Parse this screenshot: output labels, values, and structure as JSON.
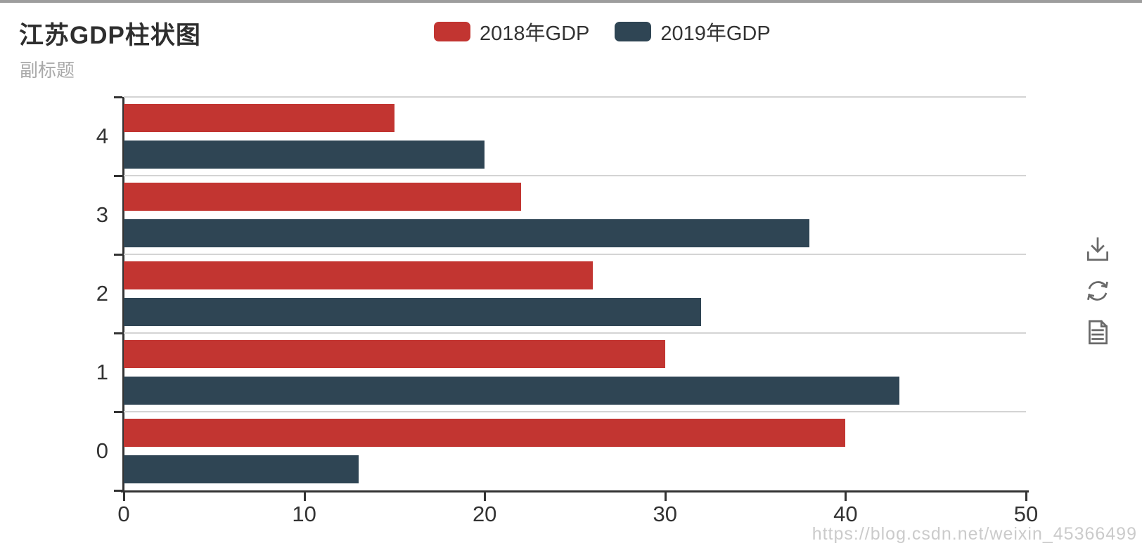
{
  "page": {
    "title": "江苏GDP柱状图",
    "subtitle": "副标题",
    "watermark": "https://blog.csdn.net/weixin_45366499"
  },
  "legend": {
    "items": [
      {
        "label": "2018年GDP",
        "color": "#c23531"
      },
      {
        "label": "2019年GDP",
        "color": "#2f4554"
      }
    ]
  },
  "toolbox": {
    "icons": [
      "save-as-image-icon",
      "restore-icon",
      "data-view-icon"
    ],
    "color": "#696969"
  },
  "chart_data": {
    "type": "bar",
    "orientation": "horizontal",
    "title": "江苏GDP柱状图",
    "subtitle": "副标题",
    "categories": [
      "0",
      "1",
      "2",
      "3",
      "4"
    ],
    "series": [
      {
        "name": "2018年GDP",
        "color": "#c23531",
        "values": [
          40,
          30,
          26,
          22,
          15
        ]
      },
      {
        "name": "2019年GDP",
        "color": "#2f4554",
        "values": [
          13,
          43,
          32,
          38,
          20
        ]
      }
    ],
    "xlim": [
      0,
      50
    ],
    "xticks": [
      0,
      10,
      20,
      30,
      40,
      50
    ],
    "xlabel": "",
    "ylabel": "",
    "grid": "horizontal-split-lines-only",
    "legend_position": "top-center",
    "category_order_on_screen_top_to_bottom": [
      "4",
      "3",
      "2",
      "1",
      "0"
    ],
    "axis_color": "#333333",
    "split_line_color": "#d4d4d4"
  }
}
